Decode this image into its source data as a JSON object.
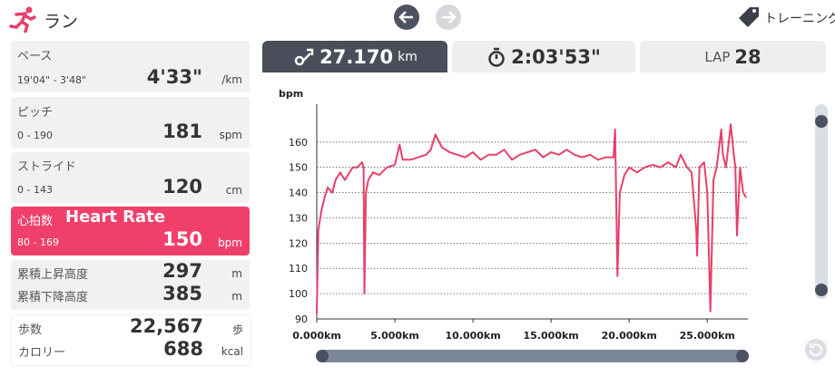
{
  "header": {
    "title": "ラン",
    "training": "トレーニング"
  },
  "sidebar": {
    "pace": {
      "label": "ペース",
      "range": "19'04\" - 3'48\"",
      "value": "4'33\"",
      "unit": "/km"
    },
    "pitch": {
      "label": "ピッチ",
      "range": "0 - 190",
      "value": "181",
      "unit": "spm"
    },
    "stride": {
      "label": "ストライド",
      "range": "0 - 143",
      "value": "120",
      "unit": "cm"
    },
    "heart_rate": {
      "label": "心拍数",
      "label_en": "Heart Rate",
      "range": "80 - 169",
      "value": "150",
      "unit": "bpm"
    },
    "elevation": {
      "ascent_label": "累積上昇高度",
      "ascent": "297",
      "ascent_unit": "m",
      "descent_label": "累積下降高度",
      "descent": "385",
      "descent_unit": "m"
    },
    "steps": {
      "steps_label": "歩数",
      "steps": "22,567",
      "steps_unit": "歩",
      "calories_label": "カロリー",
      "calories": "688",
      "calories_unit": "kcal"
    }
  },
  "tabs": {
    "distance": "27.170",
    "distance_unit": "km",
    "time": "2:03'53\"",
    "lap_label": "LAP",
    "lap": "28"
  },
  "chart_data": {
    "type": "line",
    "ylabel": "bpm",
    "color": "#e8406a",
    "grid": true,
    "xlim": [
      0,
      27.6
    ],
    "ylim": [
      90,
      175
    ],
    "xticks": [
      {
        "value": 0,
        "label": "0.000km"
      },
      {
        "value": 5,
        "label": "5.000km"
      },
      {
        "value": 10,
        "label": "10.000km"
      },
      {
        "value": 15,
        "label": "15.000km"
      },
      {
        "value": 20,
        "label": "20.000km"
      },
      {
        "value": 25,
        "label": "25.000km"
      }
    ],
    "yticks": [
      90,
      100,
      110,
      120,
      130,
      140,
      150,
      160
    ],
    "x": [
      0,
      0.1,
      0.3,
      0.5,
      0.7,
      1.0,
      1.2,
      1.5,
      1.8,
      2.0,
      2.3,
      2.6,
      2.9,
      3.0,
      3.05,
      3.15,
      3.3,
      3.6,
      4.0,
      4.5,
      5.0,
      5.3,
      5.5,
      6.0,
      6.5,
      7.0,
      7.3,
      7.6,
      8.0,
      8.5,
      9.0,
      9.5,
      10.0,
      10.5,
      11.0,
      11.5,
      12.0,
      12.5,
      13.0,
      13.5,
      14.0,
      14.5,
      15.0,
      15.5,
      16.0,
      16.5,
      17.0,
      17.5,
      18.0,
      18.5,
      19.0,
      19.1,
      19.25,
      19.4,
      19.7,
      20.0,
      20.5,
      21.0,
      21.5,
      22.0,
      22.5,
      23.0,
      23.3,
      23.7,
      24.0,
      24.3,
      24.35,
      24.5,
      24.8,
      25.0,
      25.2,
      25.4,
      25.6,
      25.9,
      26.0,
      26.2,
      26.5,
      26.7,
      26.8,
      26.9,
      27.1,
      27.3,
      27.5
    ],
    "values": [
      92,
      125,
      133,
      138,
      142,
      140,
      145,
      148,
      145,
      147,
      150,
      150,
      152,
      150,
      100,
      140,
      145,
      148,
      147,
      150,
      151,
      159,
      153,
      153,
      154,
      155,
      157,
      163,
      158,
      156,
      155,
      154,
      156,
      153,
      155,
      155,
      157,
      153,
      155,
      156,
      157,
      154,
      156,
      155,
      157,
      155,
      154,
      155,
      153,
      154,
      154,
      165,
      107,
      140,
      147,
      150,
      148,
      150,
      151,
      150,
      152,
      150,
      155,
      150,
      148,
      125,
      115,
      150,
      152,
      140,
      93,
      145,
      150,
      165,
      155,
      150,
      167,
      155,
      150,
      123,
      150,
      140,
      138
    ]
  }
}
